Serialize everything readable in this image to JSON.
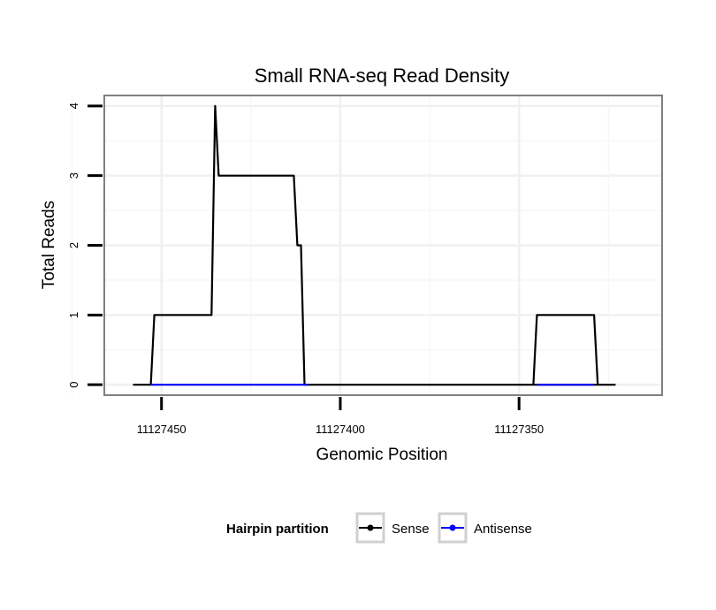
{
  "chart_data": {
    "type": "line",
    "title": "Small RNA-seq Read Density",
    "xlabel": "Genomic Position",
    "ylabel": "Total Reads",
    "x_reversed": true,
    "xlim": [
      11127466,
      11127310
    ],
    "ylim": [
      -0.15,
      4.15
    ],
    "grid": true,
    "x_ticks": [
      11127450,
      11127400,
      11127350
    ],
    "x_tick_labels": [
      "11127450",
      "11127400",
      "11127350"
    ],
    "y_ticks": [
      0,
      1,
      2,
      3,
      4
    ],
    "y_tick_labels": [
      "0",
      "1",
      "2",
      "3",
      "4"
    ],
    "legend": {
      "title": "Hairpin partition",
      "position": "bottom"
    },
    "series": [
      {
        "name": "Sense",
        "color": "#000000",
        "x": [
          11127458,
          11127453,
          11127452,
          11127436,
          11127435,
          11127434,
          11127413,
          11127412,
          11127411,
          11127410,
          11127409,
          11127323
        ],
        "y": [
          0,
          0,
          1,
          1,
          4,
          3,
          3,
          2,
          2,
          0,
          0,
          0
        ]
      },
      {
        "name": "Sense",
        "color": "#000000",
        "x": [
          11127346,
          11127345,
          11127329,
          11127328
        ],
        "y": [
          0,
          1,
          1,
          0
        ]
      },
      {
        "name": "Antisense",
        "color": "#0000ff",
        "x": [
          11127453,
          11127409
        ],
        "y": [
          0,
          0
        ]
      },
      {
        "name": "Antisense",
        "color": "#0000ff",
        "x": [
          11127345,
          11127329
        ],
        "y": [
          0,
          0
        ]
      }
    ]
  }
}
